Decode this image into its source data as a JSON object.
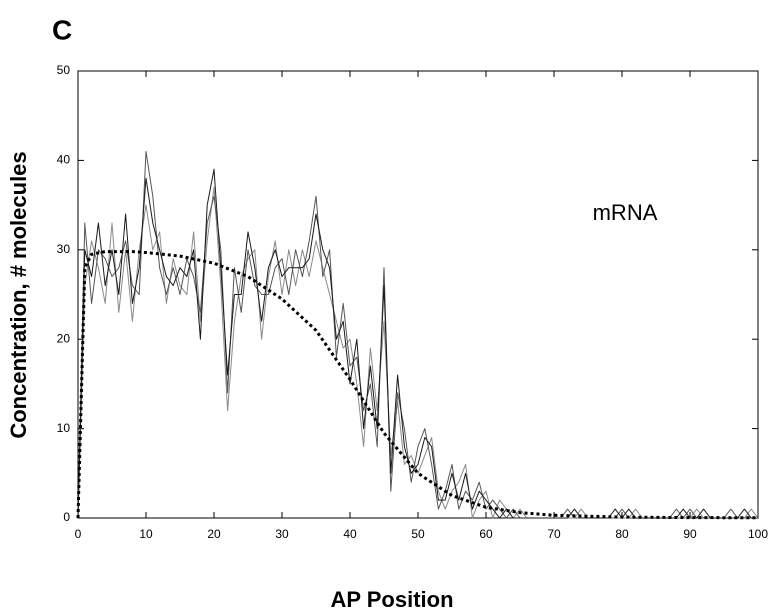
{
  "chart_data": {
    "type": "line",
    "panel_label": "C",
    "annotation": "mRNA",
    "xlabel": "AP Position",
    "ylabel": "Concentration, # molecules",
    "xlim": [
      0,
      100
    ],
    "ylim": [
      0,
      50
    ],
    "xticks": [
      0,
      10,
      20,
      30,
      40,
      50,
      60,
      70,
      80,
      90,
      100
    ],
    "yticks": [
      0,
      10,
      20,
      30,
      40,
      50
    ],
    "grid": false,
    "x": [
      0,
      1,
      2,
      3,
      4,
      5,
      6,
      7,
      8,
      9,
      10,
      11,
      12,
      13,
      14,
      15,
      16,
      17,
      18,
      19,
      20,
      21,
      22,
      23,
      24,
      25,
      26,
      27,
      28,
      29,
      30,
      31,
      32,
      33,
      34,
      35,
      36,
      37,
      38,
      39,
      40,
      41,
      42,
      43,
      44,
      45,
      46,
      47,
      48,
      49,
      50,
      51,
      52,
      53,
      54,
      55,
      56,
      57,
      58,
      59,
      60,
      61,
      62,
      63,
      64,
      65,
      66,
      67,
      68,
      69,
      70,
      71,
      72,
      73,
      74,
      75,
      76,
      77,
      78,
      79,
      80,
      81,
      82,
      83,
      84,
      85,
      86,
      87,
      88,
      89,
      90,
      91,
      92,
      93,
      94,
      95,
      96,
      97,
      98,
      99,
      100
    ],
    "series": [
      {
        "color": "#1a1a1a",
        "values": [
          0,
          30,
          27,
          33,
          26,
          30,
          25,
          34,
          24,
          28,
          38,
          33,
          30,
          27,
          26,
          28,
          27,
          30,
          20,
          35,
          39,
          28,
          16,
          25,
          25,
          32,
          28,
          22,
          28,
          30,
          27,
          28,
          28,
          28,
          29,
          34,
          30,
          28,
          20,
          22,
          15,
          20,
          10,
          17,
          10,
          26,
          5,
          16,
          8,
          5,
          6,
          9,
          8,
          2,
          2,
          5,
          2,
          5,
          1,
          3,
          2,
          1,
          0,
          1,
          0,
          0,
          0,
          0,
          0,
          0,
          0,
          0,
          0,
          1,
          0,
          0,
          0,
          0,
          0,
          1,
          0,
          1,
          0,
          0,
          0,
          0,
          0,
          0,
          0,
          1,
          0,
          0,
          1,
          0,
          0,
          0,
          0,
          0,
          1,
          0,
          0
        ]
      },
      {
        "color": "#555555",
        "values": [
          0,
          33,
          24,
          30,
          29,
          27,
          28,
          31,
          26,
          25,
          41,
          36,
          28,
          25,
          28,
          25,
          29,
          27,
          23,
          33,
          36,
          30,
          14,
          28,
          23,
          30,
          26,
          25,
          25,
          28,
          29,
          25,
          30,
          27,
          31,
          36,
          27,
          30,
          18,
          24,
          17,
          18,
          12,
          15,
          8,
          28,
          3,
          14,
          10,
          4,
          8,
          10,
          6,
          1,
          3,
          6,
          1,
          3,
          2,
          4,
          1,
          2,
          1,
          0,
          1,
          0,
          0,
          0,
          0,
          0,
          0,
          0,
          1,
          0,
          0,
          0,
          0,
          0,
          0,
          0,
          1,
          0,
          0,
          0,
          0,
          0,
          0,
          0,
          1,
          0,
          1,
          0,
          0,
          0,
          0,
          0,
          1,
          0,
          0,
          0,
          0
        ]
      },
      {
        "color": "#8a8a8a",
        "values": [
          0,
          26,
          31,
          28,
          24,
          33,
          23,
          30,
          22,
          30,
          35,
          30,
          32,
          24,
          29,
          26,
          25,
          32,
          22,
          31,
          37,
          26,
          12,
          22,
          27,
          29,
          30,
          20,
          27,
          31,
          25,
          30,
          26,
          30,
          27,
          31,
          28,
          25,
          22,
          19,
          20,
          15,
          8,
          19,
          12,
          22,
          7,
          13,
          6,
          7,
          5,
          7,
          9,
          3,
          1,
          3,
          4,
          6,
          0,
          2,
          3,
          0,
          2,
          1,
          0,
          1,
          0,
          0,
          0,
          0,
          0,
          0,
          0,
          0,
          1,
          0,
          0,
          0,
          0,
          0,
          0,
          0,
          1,
          0,
          0,
          0,
          0,
          0,
          0,
          0,
          0,
          1,
          0,
          0,
          0,
          0,
          0,
          0,
          0,
          1,
          0
        ]
      }
    ],
    "fit": {
      "color": "#000000",
      "style": "dotted",
      "x": [
        0,
        1,
        2,
        4,
        6,
        8,
        10,
        15,
        20,
        25,
        30,
        35,
        40,
        45,
        50,
        55,
        60,
        65,
        70,
        80,
        90,
        100
      ],
      "values": [
        0,
        28,
        29.5,
        29.8,
        29.8,
        29.8,
        29.7,
        29.3,
        28.5,
        27,
        24.5,
        21,
        15.5,
        9.5,
        5,
        2.5,
        1.2,
        0.6,
        0.3,
        0.1,
        0.05,
        0.02
      ]
    }
  }
}
